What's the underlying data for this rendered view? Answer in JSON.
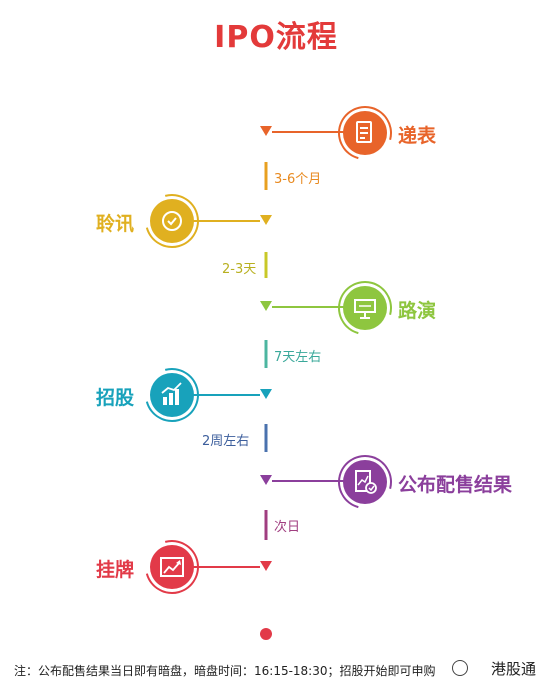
{
  "title": "IPO流程",
  "colors": {
    "title": "#e33a3a",
    "orange": "#e8642a",
    "yellow": "#e0b020",
    "green": "#8ec63f",
    "cyan": "#18a2bb",
    "purple": "#8b3f9c",
    "red": "#e23a48"
  },
  "steps": [
    {
      "label": "递表",
      "icon": "document-icon"
    },
    {
      "label": "聆讯",
      "icon": "check-icon"
    },
    {
      "label": "路演",
      "icon": "presentation-icon"
    },
    {
      "label": "招股",
      "icon": "bar-chart-icon"
    },
    {
      "label": "公布配售结果",
      "icon": "report-check-icon"
    },
    {
      "label": "挂牌",
      "icon": "trend-up-icon"
    }
  ],
  "durations": [
    "3-6个月",
    "2-3天",
    "7天左右",
    "2周左右",
    "次日"
  ],
  "footer_note": "注：公布配售结果当日即有暗盘，暗盘时间：16:15-18:30；招股开始即可申购",
  "watermark": "港股通"
}
